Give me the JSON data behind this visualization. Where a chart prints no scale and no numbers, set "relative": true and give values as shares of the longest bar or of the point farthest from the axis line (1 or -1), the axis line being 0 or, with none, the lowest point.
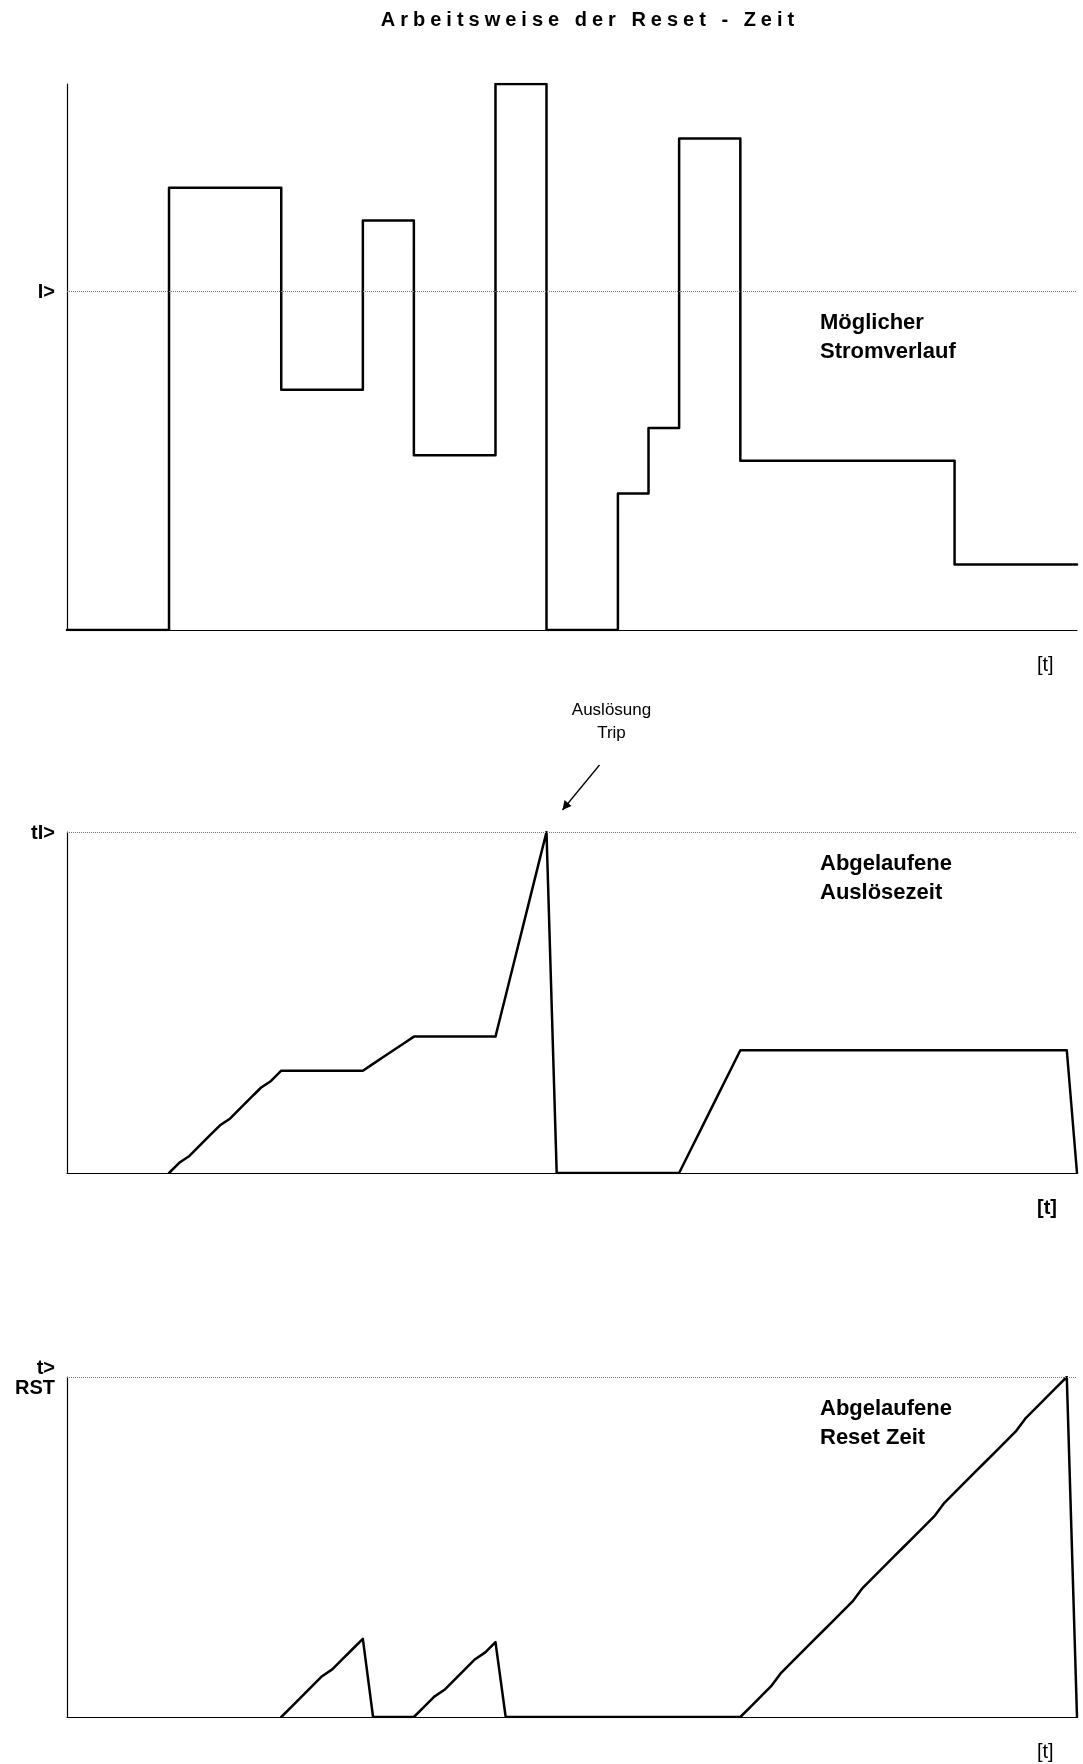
{
  "chart_data": [
    {
      "type": "step",
      "title": "Arbeitsweise der Reset - Zeit",
      "xlabel": "[t]",
      "relative": true,
      "tick_labels": false,
      "categories": [
        null,
        null,
        null,
        null,
        null,
        null,
        null,
        null,
        null,
        null,
        null,
        null,
        null,
        null,
        null,
        null,
        null,
        null,
        null,
        null,
        null,
        null,
        null,
        null,
        null,
        null,
        null,
        null,
        null,
        null,
        null,
        null,
        null,
        null,
        null,
        null,
        null,
        null,
        null,
        null,
        null,
        null,
        null,
        null,
        null,
        null,
        null,
        null,
        null,
        null,
        null,
        null,
        null,
        null,
        null,
        null,
        null,
        null,
        null,
        null,
        null,
        null,
        null,
        null,
        null,
        null,
        null,
        null,
        null,
        null,
        null,
        null,
        null,
        null,
        null,
        null,
        null,
        null,
        null,
        null,
        null,
        null,
        null,
        null,
        null,
        null,
        null,
        null,
        null,
        null,
        null,
        null,
        null,
        null,
        null,
        null,
        null,
        null,
        null,
        null
      ],
      "series": [
        {
          "color": "#000000",
          "values": [
            0,
            0,
            0,
            0,
            0,
            0,
            0,
            0,
            0,
            0,
            0.81,
            0.81,
            0.81,
            0.81,
            0.81,
            0.81,
            0.81,
            0.81,
            0.81,
            0.81,
            0.81,
            0.44,
            0.44,
            0.44,
            0.44,
            0.44,
            0.44,
            0.44,
            0.44,
            0.75,
            0.75,
            0.75,
            0.75,
            0.75,
            0.32,
            0.32,
            0.32,
            0.32,
            0.32,
            0.32,
            0.32,
            0.32,
            1,
            1,
            1,
            1,
            1,
            0,
            0,
            0,
            0,
            0,
            0,
            0,
            0.25,
            0.25,
            0.25,
            0.37,
            0.37,
            0.37,
            0.9,
            0.9,
            0.9,
            0.9,
            0.9,
            0.9,
            0.31,
            0.31,
            0.31,
            0.31,
            0.31,
            0.31,
            0.31,
            0.31,
            0.31,
            0.31,
            0.31,
            0.31,
            0.31,
            0.31,
            0.31,
            0.31,
            0.31,
            0.31,
            0.31,
            0.31,
            0.31,
            0.12,
            0.12,
            0.12,
            0.12,
            0.12,
            0.12,
            0.12,
            0.12,
            0.12,
            0.12,
            0.12,
            0.12,
            0.12
          ]
        }
      ],
      "ref_lines": [
        {
          "axis": "y",
          "value": 0.62,
          "label": "I>"
        }
      ],
      "annotations": [
        "Möglicher\nStromverlauf"
      ]
    },
    {
      "type": "line",
      "xlabel": "[t]",
      "relative": true,
      "tick_labels": false,
      "categories": [
        null,
        null,
        null,
        null,
        null,
        null,
        null,
        null,
        null,
        null,
        null,
        null,
        null,
        null,
        null,
        null,
        null,
        null,
        null,
        null,
        null,
        null,
        null,
        null,
        null,
        null,
        null,
        null,
        null,
        null,
        null,
        null,
        null,
        null,
        null,
        null,
        null,
        null,
        null,
        null,
        null,
        null,
        null,
        null,
        null,
        null,
        null,
        null,
        null,
        null,
        null,
        null,
        null,
        null,
        null,
        null,
        null,
        null,
        null,
        null,
        null,
        null,
        null,
        null,
        null,
        null,
        null,
        null,
        null,
        null,
        null,
        null,
        null,
        null,
        null,
        null,
        null,
        null,
        null,
        null,
        null,
        null,
        null,
        null,
        null,
        null,
        null,
        null,
        null,
        null,
        null,
        null,
        null,
        null,
        null,
        null,
        null,
        null,
        null,
        null
      ],
      "series": [
        {
          "color": "#000000",
          "values": [
            null,
            null,
            null,
            null,
            null,
            null,
            null,
            null,
            null,
            null,
            0,
            0.03,
            0.05,
            0.08,
            0.11,
            0.14,
            0.16,
            0.19,
            0.22,
            0.25,
            0.27,
            0.3,
            0.3,
            0.3,
            0.3,
            0.3,
            0.3,
            0.3,
            0.3,
            0.3,
            0.32,
            0.34,
            0.36,
            0.38,
            0.4,
            0.4,
            0.4,
            0.4,
            0.4,
            0.4,
            0.4,
            0.4,
            0.4,
            0.52,
            0.64,
            0.76,
            0.88,
            1,
            0,
            0,
            0,
            0,
            0,
            0,
            0,
            0,
            0,
            0,
            0,
            0,
            0,
            0.06,
            0.12,
            0.18,
            0.24,
            0.3,
            0.36,
            0.36,
            0.36,
            0.36,
            0.36,
            0.36,
            0.36,
            0.36,
            0.36,
            0.36,
            0.36,
            0.36,
            0.36,
            0.36,
            0.36,
            0.36,
            0.36,
            0.36,
            0.36,
            0.36,
            0.36,
            0.36,
            0.36,
            0.36,
            0.36,
            0.36,
            0.36,
            0.36,
            0.36,
            0.36,
            0.36,
            0.36,
            0.36,
            0
          ]
        }
      ],
      "ref_lines": [
        {
          "axis": "y",
          "value": 1,
          "label": "tI>"
        }
      ],
      "annotations": [
        "Abgelaufene\nAuslösezeit",
        "Auslösung\nTrip"
      ]
    },
    {
      "type": "line",
      "xlabel": "[t]",
      "relative": true,
      "tick_labels": false,
      "categories": [
        null,
        null,
        null,
        null,
        null,
        null,
        null,
        null,
        null,
        null,
        null,
        null,
        null,
        null,
        null,
        null,
        null,
        null,
        null,
        null,
        null,
        null,
        null,
        null,
        null,
        null,
        null,
        null,
        null,
        null,
        null,
        null,
        null,
        null,
        null,
        null,
        null,
        null,
        null,
        null,
        null,
        null,
        null,
        null,
        null,
        null,
        null,
        null,
        null,
        null,
        null,
        null,
        null,
        null,
        null,
        null,
        null,
        null,
        null,
        null,
        null,
        null,
        null,
        null,
        null,
        null,
        null,
        null,
        null,
        null,
        null,
        null,
        null,
        null,
        null,
        null,
        null,
        null,
        null,
        null,
        null,
        null,
        null,
        null,
        null,
        null,
        null,
        null,
        null,
        null,
        null,
        null,
        null,
        null,
        null,
        null,
        null,
        null,
        null,
        null
      ],
      "series": [
        {
          "color": "#000000",
          "values": [
            null,
            null,
            null,
            null,
            null,
            null,
            null,
            null,
            null,
            null,
            null,
            null,
            null,
            null,
            null,
            null,
            null,
            null,
            null,
            null,
            null,
            0,
            0.03,
            0.06,
            0.09,
            0.12,
            0.14,
            0.17,
            0.2,
            0.23,
            0,
            0,
            0,
            0,
            0,
            0.03,
            0.06,
            0.08,
            0.11,
            0.14,
            0.17,
            0.19,
            0.22,
            0,
            0,
            0,
            0,
            0,
            0,
            0,
            0,
            0,
            0,
            0,
            0,
            0,
            0,
            0,
            0,
            0,
            0,
            0,
            0,
            0,
            0,
            0,
            0,
            0.03,
            0.06,
            0.09,
            0.13,
            0.16,
            0.19,
            0.22,
            0.25,
            0.28,
            0.31,
            0.34,
            0.38,
            0.41,
            0.44,
            0.47,
            0.5,
            0.53,
            0.56,
            0.59,
            0.63,
            0.66,
            0.69,
            0.72,
            0.75,
            0.78,
            0.81,
            0.84,
            0.88,
            0.91,
            0.94,
            0.97,
            1,
            0
          ]
        }
      ],
      "ref_lines": [
        {
          "axis": "y",
          "value": 1,
          "label": "t>\nRST"
        }
      ],
      "annotations": [
        "Abgelaufene\nReset Zeit"
      ]
    }
  ]
}
